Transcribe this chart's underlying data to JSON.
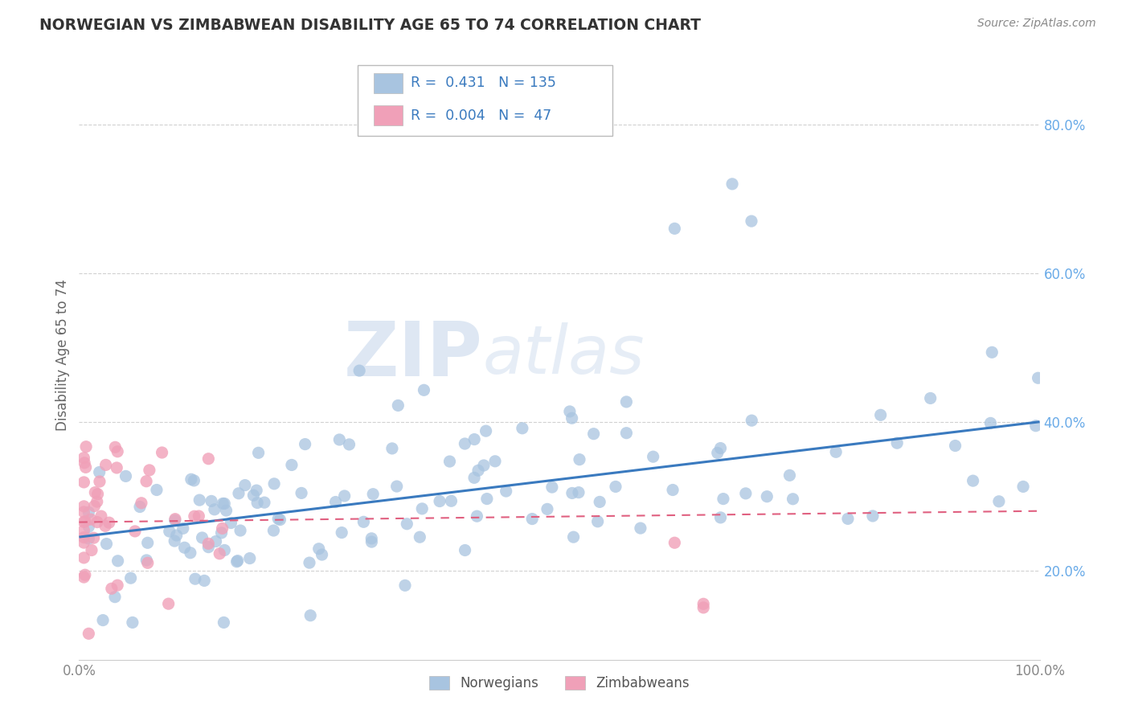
{
  "title": "NORWEGIAN VS ZIMBABWEAN DISABILITY AGE 65 TO 74 CORRELATION CHART",
  "source": "Source: ZipAtlas.com",
  "ylabel": "Disability Age 65 to 74",
  "xlim": [
    0.0,
    1.0
  ],
  "ylim": [
    0.08,
    0.9
  ],
  "yticks": [
    0.2,
    0.4,
    0.6,
    0.8
  ],
  "ytick_labels": [
    "20.0%",
    "40.0%",
    "60.0%",
    "80.0%"
  ],
  "xticks": [
    0.0,
    0.2,
    0.4,
    0.6,
    0.8,
    1.0
  ],
  "xtick_labels": [
    "0.0%",
    "",
    "",
    "",
    "",
    "100.0%"
  ],
  "norwegian_R": 0.431,
  "norwegian_N": 135,
  "zimbabwean_R": 0.004,
  "zimbabwean_N": 47,
  "norwegian_color": "#a8c4e0",
  "zimbabwean_color": "#f0a0b8",
  "norwegian_line_color": "#3a7abf",
  "zimbabwean_line_color": "#e06080",
  "grid_color": "#cccccc",
  "background_color": "#ffffff",
  "legend_norwegian_label": "Norwegians",
  "legend_zimbabwean_label": "Zimbabweans",
  "tick_color": "#6aabe8",
  "nor_line_start_y": 0.245,
  "nor_line_end_y": 0.4,
  "zim_line_start_y": 0.265,
  "zim_line_end_y": 0.28
}
